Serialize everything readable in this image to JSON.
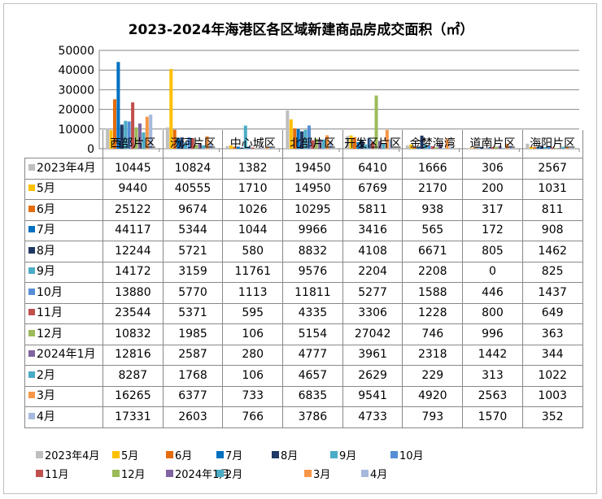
{
  "chart_data": {
    "type": "bar",
    "title": "2023-2024年海港区各区域新建商品房成交面积（㎡）",
    "categories": [
      "西部片区",
      "汤河片区",
      "中心城区",
      "北部片区",
      "开发区片区",
      "金梦海湾",
      "道南片区",
      "海阳片区"
    ],
    "yticks": [
      "0",
      "10000",
      "20000",
      "30000",
      "40000",
      "50000"
    ],
    "ylim": [
      0,
      50000
    ],
    "legend_position": "bottom",
    "series": [
      {
        "name": "2023年4月",
        "color": "#bfbfbf",
        "values": [
          10445,
          10824,
          1382,
          19450,
          6410,
          1666,
          306,
          2567
        ]
      },
      {
        "name": "5月",
        "color": "#ffc000",
        "values": [
          9440,
          40555,
          1710,
          14950,
          6769,
          2170,
          200,
          1031
        ]
      },
      {
        "name": "6月",
        "color": "#e46c0a",
        "values": [
          25122,
          9674,
          1026,
          10295,
          5811,
          938,
          317,
          811
        ]
      },
      {
        "name": "7月",
        "color": "#0070c0",
        "values": [
          44117,
          5344,
          1044,
          9966,
          3416,
          565,
          172,
          908
        ]
      },
      {
        "name": "8月",
        "color": "#1f3864",
        "values": [
          12244,
          5721,
          580,
          8832,
          4108,
          6671,
          805,
          1462
        ]
      },
      {
        "name": "9月",
        "color": "#4bacc6",
        "values": [
          14172,
          3159,
          11761,
          9576,
          2204,
          2208,
          0,
          825
        ]
      },
      {
        "name": "10月",
        "color": "#558ed5",
        "values": [
          13880,
          5770,
          1113,
          11811,
          5277,
          1588,
          446,
          1437
        ]
      },
      {
        "name": "11月",
        "color": "#c0504d",
        "values": [
          23544,
          5371,
          595,
          4335,
          3306,
          1228,
          800,
          649
        ]
      },
      {
        "name": "12月",
        "color": "#9bbb59",
        "values": [
          10832,
          1985,
          106,
          5154,
          27042,
          746,
          996,
          363
        ]
      },
      {
        "name": "2024年1月",
        "color": "#8064a2",
        "values": [
          12816,
          2587,
          280,
          4777,
          3961,
          2318,
          1442,
          344
        ]
      },
      {
        "name": "2月",
        "color": "#4bacc6",
        "values": [
          8287,
          1768,
          106,
          4657,
          2629,
          229,
          313,
          1022
        ]
      },
      {
        "name": "3月",
        "color": "#f79646",
        "values": [
          16265,
          6377,
          733,
          6835,
          9541,
          4920,
          2563,
          1003
        ]
      },
      {
        "name": "4月",
        "color": "#a6b9dc",
        "values": [
          17331,
          2603,
          766,
          3786,
          4733,
          793,
          1570,
          352
        ]
      }
    ]
  }
}
